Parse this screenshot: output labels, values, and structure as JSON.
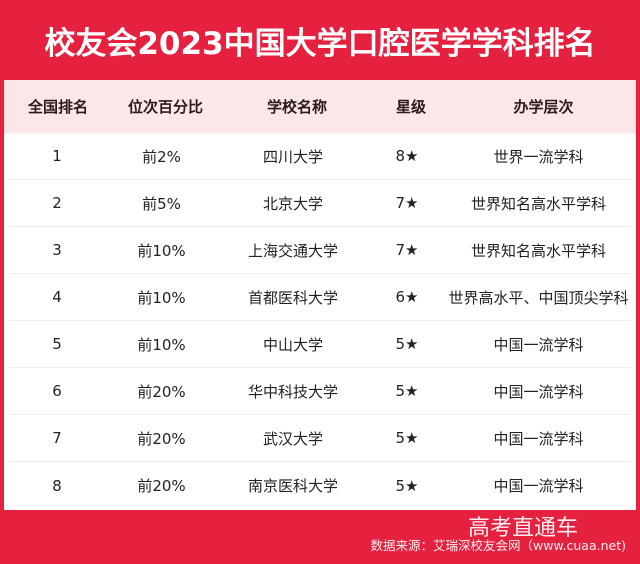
{
  "title": "校友会2023中国大学口腔医学学科排名",
  "table": {
    "headers": [
      "全国排名",
      "位次百分比",
      "学校名称",
      "星级",
      "办学层次"
    ],
    "rows": [
      {
        "rank": "1",
        "percentile": "前2%",
        "school": "四川大学",
        "stars": "8★",
        "level": "世界一流学科"
      },
      {
        "rank": "2",
        "percentile": "前5%",
        "school": "北京大学",
        "stars": "7★",
        "level": "世界知名高水平学科"
      },
      {
        "rank": "3",
        "percentile": "前10%",
        "school": "上海交通大学",
        "stars": "7★",
        "level": "世界知名高水平学科"
      },
      {
        "rank": "4",
        "percentile": "前10%",
        "school": "首都医科大学",
        "stars": "6★",
        "level": "世界高水平、中国顶尖学科"
      },
      {
        "rank": "5",
        "percentile": "前10%",
        "school": "中山大学",
        "stars": "5★",
        "level": "中国一流学科"
      },
      {
        "rank": "6",
        "percentile": "前20%",
        "school": "华中科技大学",
        "stars": "5★",
        "level": "中国一流学科"
      },
      {
        "rank": "7",
        "percentile": "前20%",
        "school": "武汉大学",
        "stars": "5★",
        "level": "中国一流学科"
      },
      {
        "rank": "8",
        "percentile": "前20%",
        "school": "南京医科大学",
        "stars": "5★",
        "level": "中国一流学科"
      }
    ]
  },
  "footer": {
    "watermark": "高考直通车",
    "source": "数据来源：艾瑞深校友会网（www.cuaa.net)"
  },
  "colors": {
    "frame_red": "#e6203f",
    "header_pink": "#fbe6e8"
  }
}
